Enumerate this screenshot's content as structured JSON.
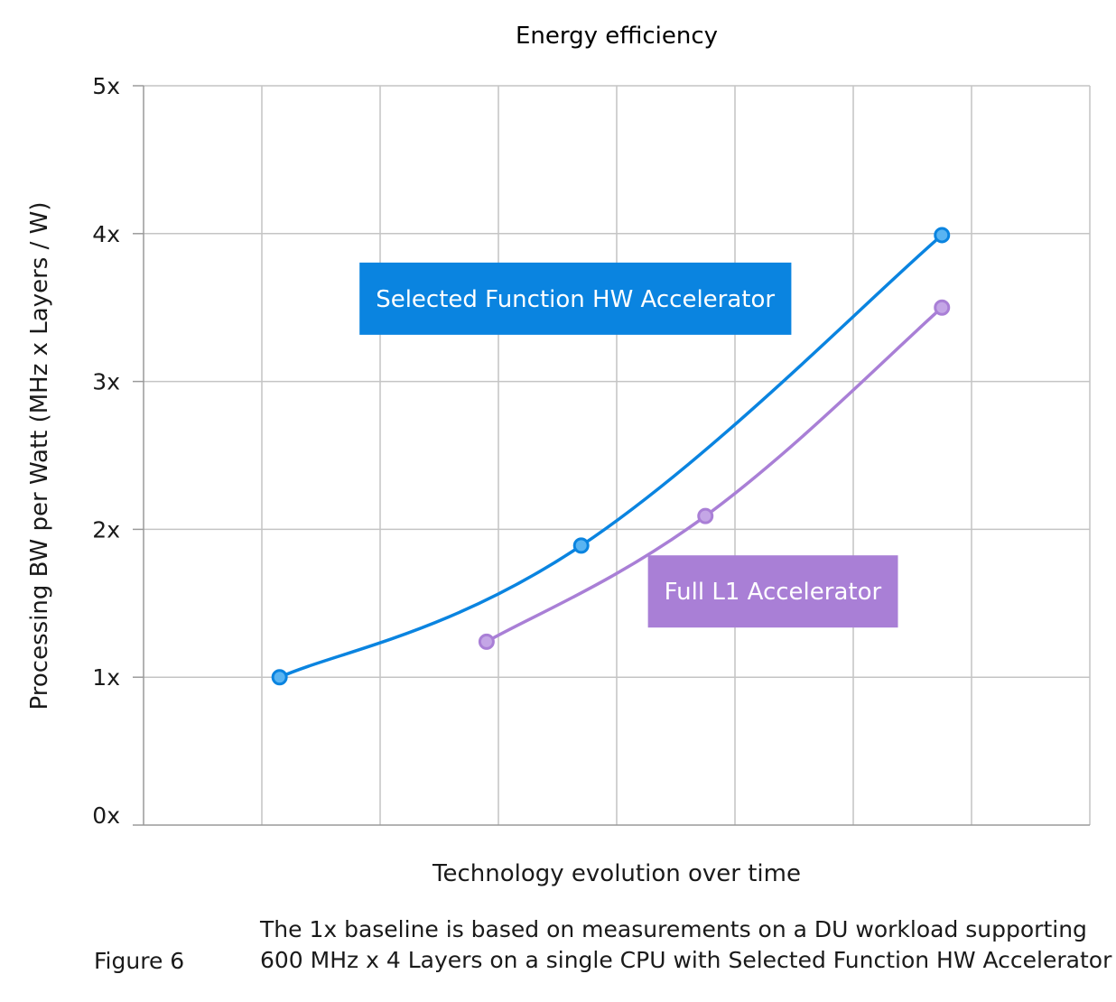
{
  "chart_data": {
    "type": "line",
    "title": "Energy efficiency",
    "xlabel": "Technology evolution over time",
    "ylabel": "Processing BW per Watt (MHz x Layers / W)",
    "ylim": [
      0,
      5
    ],
    "xlim": [
      0,
      8
    ],
    "yticks": [
      0,
      1,
      2,
      3,
      4,
      5
    ],
    "ytick_labels": [
      "0x",
      "1x",
      "2x",
      "3x",
      "4x",
      "5x"
    ],
    "xticks": [
      0,
      1,
      2,
      3,
      4,
      5,
      6,
      7,
      8
    ],
    "grid": true,
    "series": [
      {
        "name": "Selected Function HW Accelerator",
        "color": "#0a84e0",
        "marker_fill": "#59b4f2",
        "x": [
          1.15,
          3.7,
          6.75
        ],
        "y": [
          1.0,
          1.89,
          3.99
        ]
      },
      {
        "name": "Full L1 Accelerator",
        "color": "#a97fd6",
        "marker_fill": "#c4a6e6",
        "x": [
          2.9,
          4.75,
          6.75
        ],
        "y": [
          1.24,
          2.09,
          3.5
        ]
      }
    ],
    "annotations": [
      {
        "text": "Selected Function HW Accelerator",
        "series": 0,
        "bg": "#0a84e0",
        "x": 3.65,
        "y": 3.56
      },
      {
        "text": "Full L1 Accelerator",
        "series": 1,
        "bg": "#a97fd6",
        "x": 5.32,
        "y": 1.58
      }
    ]
  },
  "figure": {
    "label": "Figure 6",
    "caption_lines": [
      "The 1x baseline is based on measurements on a DU workload supporting",
      "600 MHz x 4 Layers on a single CPU with Selected Function HW Accelerator"
    ]
  }
}
